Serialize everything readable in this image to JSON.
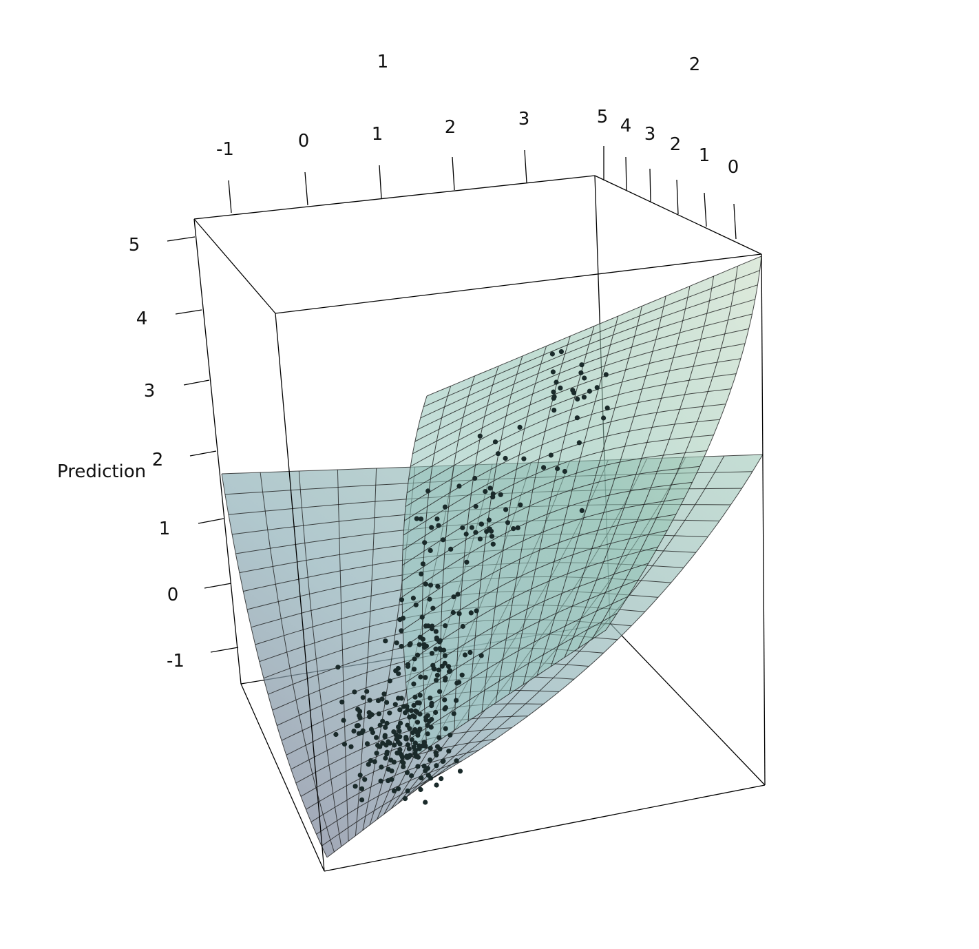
{
  "chart_data": {
    "type": "surface3d",
    "title": "",
    "axes": {
      "x": {
        "label": "1",
        "ticks": [
          "-1",
          "0",
          "1",
          "2",
          "3"
        ]
      },
      "y": {
        "label": "2",
        "ticks": [
          "5",
          "4",
          "3",
          "2",
          "1",
          "0"
        ]
      },
      "z": {
        "label": "Prediction",
        "ticks": [
          "5",
          "4",
          "3",
          "2",
          "1",
          "0",
          "-1"
        ]
      }
    },
    "surfaces": [
      {
        "name": "",
        "color_low": "#9aa6b8",
        "color_high": "#c4dcc6"
      },
      {
        "name": "",
        "color_low": "#b7c2c2",
        "color_high": "#9ec9bd"
      }
    ],
    "points_color": "#1a2a2a",
    "box": true,
    "grid": true
  }
}
